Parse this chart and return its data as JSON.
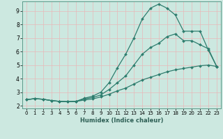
{
  "title": "",
  "xlabel": "Humidex (Indice chaleur)",
  "background_color": "#cce8e0",
  "grid_color": "#b0d8cc",
  "line_color": "#2e7d6e",
  "xlim": [
    -0.5,
    23.5
  ],
  "ylim": [
    1.8,
    9.7
  ],
  "xticks": [
    0,
    1,
    2,
    3,
    4,
    5,
    6,
    7,
    8,
    9,
    10,
    11,
    12,
    13,
    14,
    15,
    16,
    17,
    18,
    19,
    20,
    21,
    22,
    23
  ],
  "yticks": [
    2,
    3,
    4,
    5,
    6,
    7,
    8,
    9
  ],
  "series1_x": [
    0,
    1,
    2,
    3,
    4,
    5,
    6,
    7,
    8,
    9,
    10,
    11,
    12,
    13,
    14,
    15,
    16,
    17,
    18,
    19,
    20,
    21,
    22,
    23
  ],
  "series1_y": [
    2.45,
    2.52,
    2.48,
    2.38,
    2.32,
    2.3,
    2.32,
    2.55,
    2.7,
    3.0,
    3.7,
    4.8,
    5.8,
    7.0,
    8.4,
    9.2,
    9.5,
    9.2,
    8.7,
    7.5,
    7.5,
    7.5,
    6.1,
    4.9
  ],
  "series2_x": [
    0,
    1,
    2,
    3,
    4,
    5,
    6,
    7,
    8,
    9,
    10,
    11,
    12,
    13,
    14,
    15,
    16,
    17,
    18,
    19,
    20,
    21,
    22,
    23
  ],
  "series2_y": [
    2.45,
    2.52,
    2.48,
    2.38,
    2.32,
    2.3,
    2.32,
    2.5,
    2.6,
    2.8,
    3.2,
    3.7,
    4.2,
    5.0,
    5.8,
    6.3,
    6.6,
    7.1,
    7.3,
    6.8,
    6.8,
    6.5,
    6.2,
    4.9
  ],
  "series3_x": [
    0,
    1,
    2,
    3,
    4,
    5,
    6,
    7,
    8,
    9,
    10,
    11,
    12,
    13,
    14,
    15,
    16,
    17,
    18,
    19,
    20,
    21,
    22,
    23
  ],
  "series3_y": [
    2.45,
    2.52,
    2.48,
    2.38,
    2.32,
    2.3,
    2.32,
    2.42,
    2.5,
    2.65,
    2.85,
    3.1,
    3.3,
    3.6,
    3.9,
    4.1,
    4.3,
    4.5,
    4.65,
    4.75,
    4.85,
    4.95,
    5.0,
    4.9
  ]
}
